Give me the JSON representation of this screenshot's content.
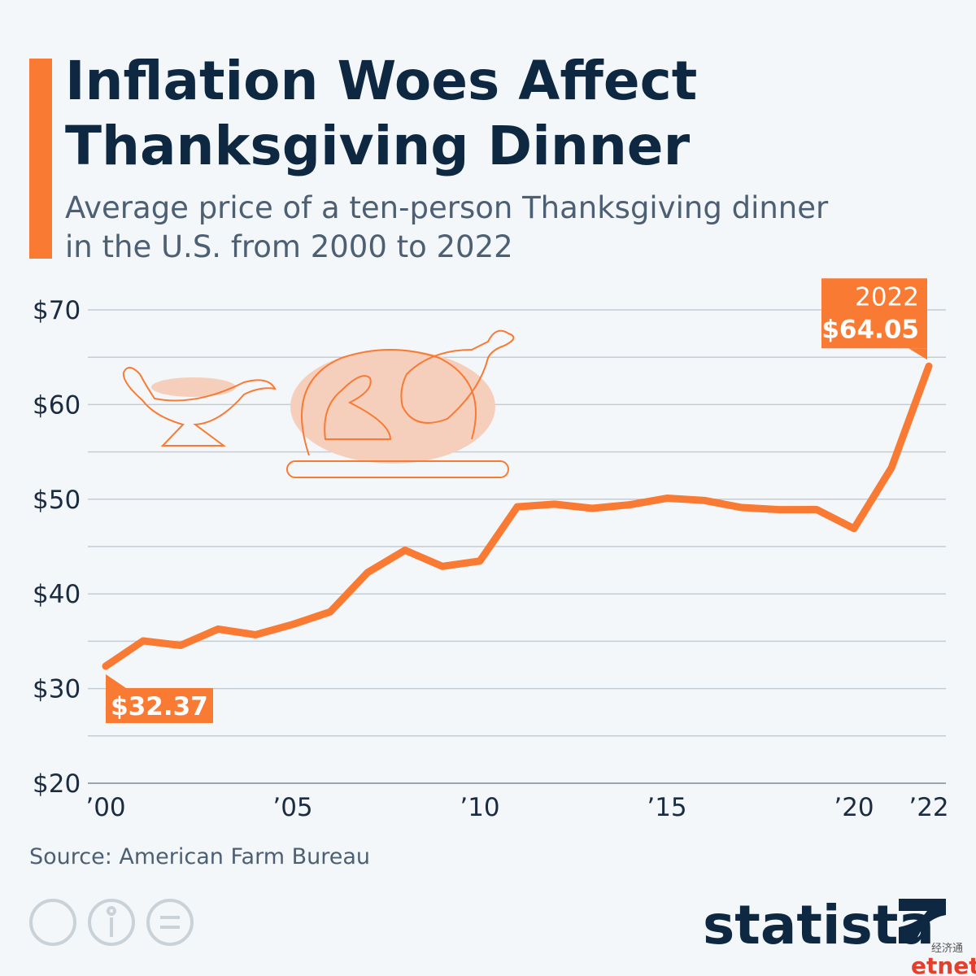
{
  "chart_data": {
    "type": "line",
    "title": "Inflation Woes Affect Thanksgiving Dinner",
    "subtitle": "Average price of a ten-person Thanksgiving dinner in the U.S. from 2000 to 2022",
    "x": [
      2000,
      2001,
      2002,
      2003,
      2004,
      2005,
      2006,
      2007,
      2008,
      2009,
      2010,
      2011,
      2012,
      2013,
      2014,
      2015,
      2016,
      2017,
      2018,
      2019,
      2020,
      2021,
      2022
    ],
    "series": [
      {
        "name": "Average price",
        "color": "#f97a33",
        "values": [
          32.37,
          35.04,
          34.56,
          36.28,
          35.68,
          36.78,
          38.1,
          42.26,
          44.61,
          42.91,
          43.47,
          49.2,
          49.48,
          49.04,
          49.41,
          50.11,
          49.87,
          49.12,
          48.9,
          48.91,
          46.9,
          53.31,
          64.05
        ],
        "value_labels": [
          "$32.37",
          null,
          null,
          null,
          null,
          null,
          null,
          null,
          null,
          null,
          null,
          null,
          null,
          null,
          null,
          null,
          null,
          null,
          null,
          null,
          null,
          null,
          "$64.05"
        ]
      }
    ],
    "xlim": [
      2000,
      2022
    ],
    "xticks": [
      {
        "value": 2000,
        "label": "’00"
      },
      {
        "value": 2005,
        "label": "’05"
      },
      {
        "value": 2010,
        "label": "’10"
      },
      {
        "value": 2015,
        "label": "’15"
      },
      {
        "value": 2020,
        "label": "’20"
      },
      {
        "value": 2022,
        "label": "’22"
      }
    ],
    "ylim": [
      20,
      70
    ],
    "yticks": [
      {
        "value": 20,
        "label": "$20"
      },
      {
        "value": 30,
        "label": "$30"
      },
      {
        "value": 40,
        "label": "$40"
      },
      {
        "value": 50,
        "label": "$50"
      },
      {
        "value": 60,
        "label": "$60"
      },
      {
        "value": 70,
        "label": "$70"
      }
    ],
    "y_minor_ticks": [
      25,
      35,
      45,
      55,
      65
    ],
    "grid": true,
    "source": "Source: American Farm Bureau",
    "brand": "statista",
    "watermark": [
      "经济通",
      "etnet"
    ]
  }
}
